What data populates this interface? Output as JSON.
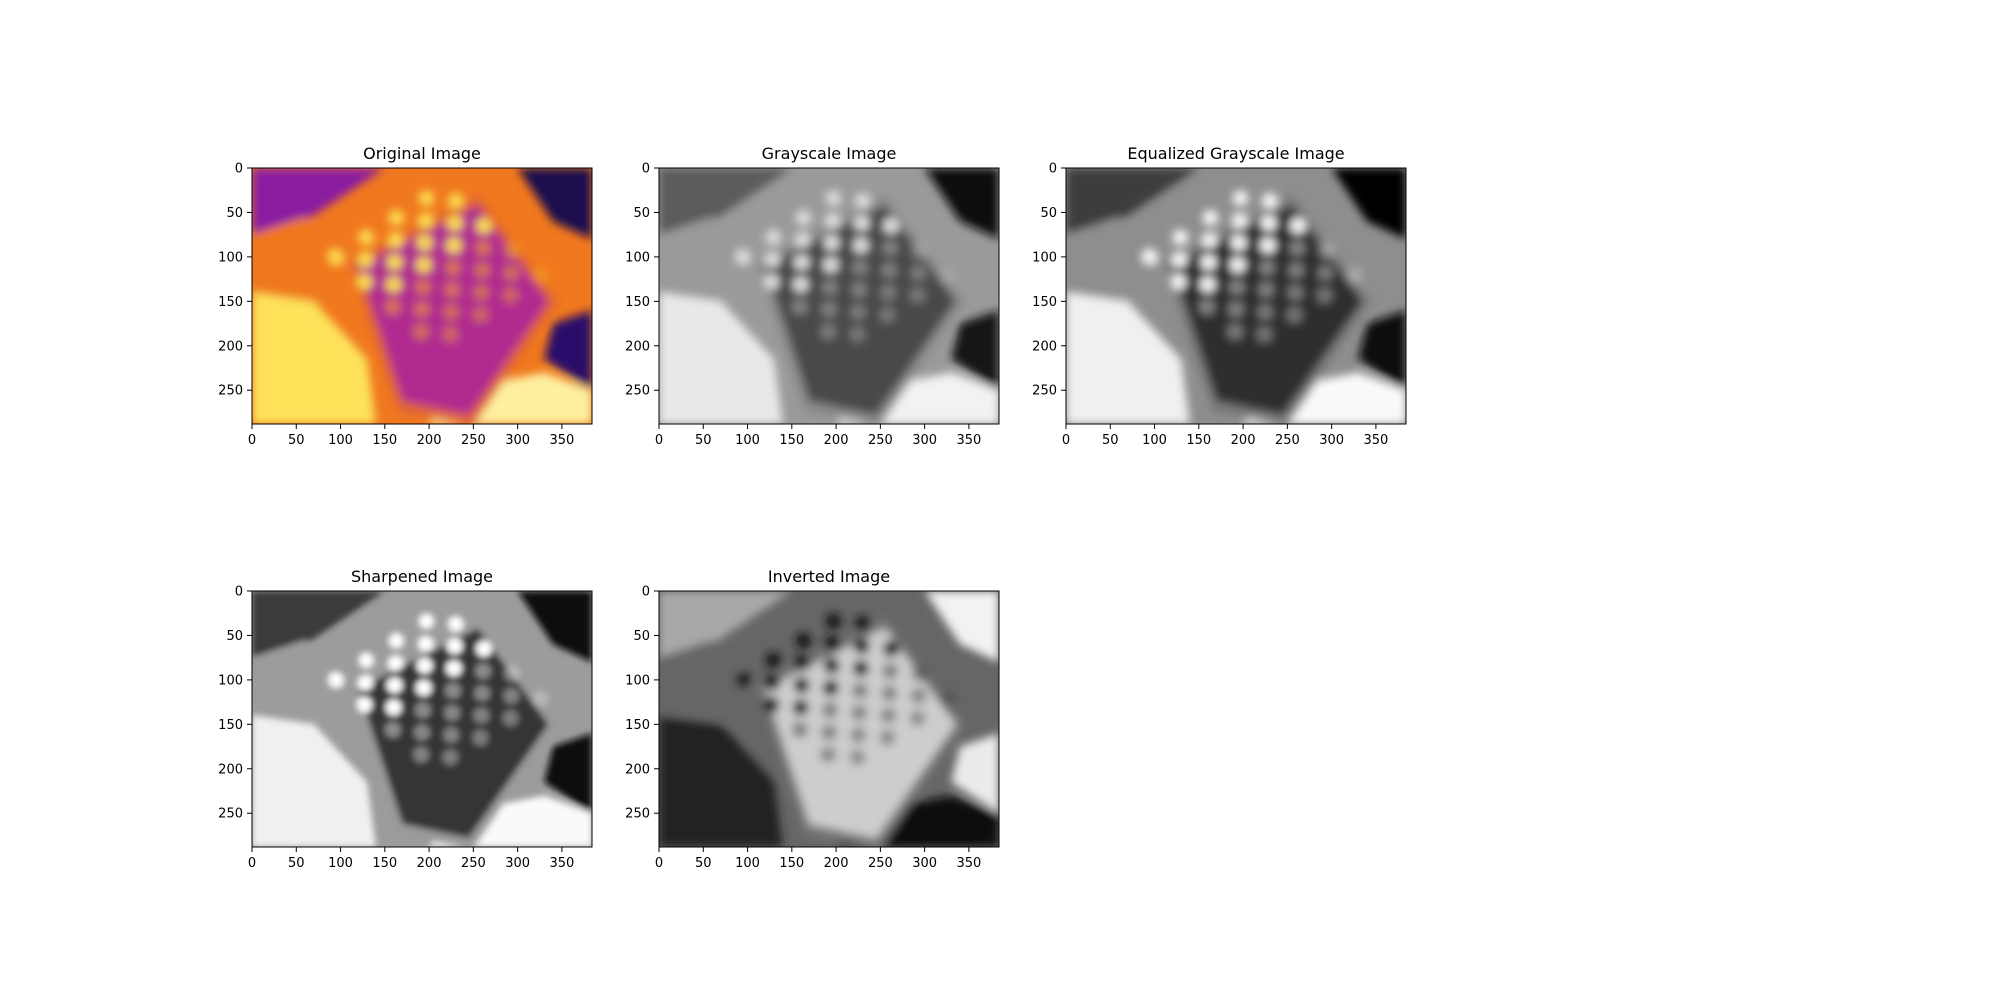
{
  "figure": {
    "panels": [
      {
        "title": "Original Image",
        "style": "inferno"
      },
      {
        "title": "Grayscale Image",
        "style": "gray"
      },
      {
        "title": "Equalized Grayscale Image",
        "style": "equalized"
      },
      {
        "title": "Sharpened Image",
        "style": "sharpened"
      },
      {
        "title": "Inverted Image",
        "style": "inverted"
      }
    ],
    "x_ticks": [
      "0",
      "50",
      "100",
      "150",
      "200",
      "250",
      "300",
      "350"
    ],
    "y_ticks": [
      "0",
      "50",
      "100",
      "150",
      "200",
      "250"
    ],
    "image_size": {
      "width": 384,
      "height": 288
    },
    "colormaps": {
      "inferno": [
        "#000004",
        "#320a5e",
        "#781c6d",
        "#bc3754",
        "#ed6925",
        "#fbb61a",
        "#fcffa4"
      ],
      "gray": [
        "#000000",
        "#ffffff"
      ]
    }
  }
}
